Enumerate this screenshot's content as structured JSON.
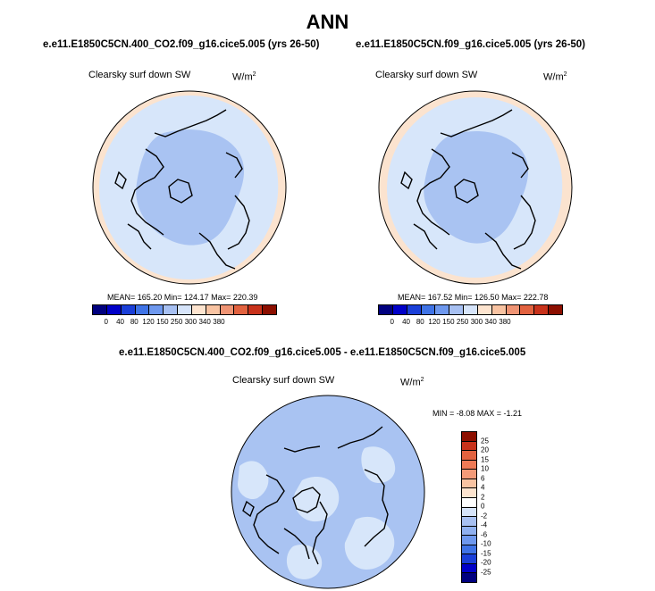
{
  "title": "ANN",
  "panels": [
    {
      "case": "e.e11.E1850C5CN.400_CO2.f09_g16.cice5.005 (yrs 26-50)",
      "variable": "Clearsky surf down SW",
      "units": "W/m",
      "units_exp": "2",
      "stats": "MEAN= 165.20  Min= 124.17  Max= 220.39"
    },
    {
      "case": "e.e11.E1850C5CN.f09_g16.cice5.005 (yrs 26-50)",
      "variable": "Clearsky surf down SW",
      "units": "W/m",
      "units_exp": "2",
      "stats": "MEAN= 167.52  Min= 126.50  Max= 222.78"
    }
  ],
  "diff": {
    "title": "e.e11.E1850C5CN.400_CO2.f09_g16.cice5.005 - e.e11.E1850C5CN.f09_g16.cice5.005",
    "variable": "Clearsky surf down SW",
    "units": "W/m",
    "units_exp": "2",
    "stats": "MIN =  -8.08 MAX =  -1.21"
  },
  "colorbar_abs": {
    "labels": [
      "0",
      "40",
      "80",
      "120",
      "150",
      "250",
      "300",
      "340",
      "380"
    ],
    "colors": [
      "#00007f",
      "#0000c8",
      "#1a3fd8",
      "#3f73e6",
      "#6e98ee",
      "#a7c0f2",
      "#d6e4fa",
      "#fde4cf",
      "#f8c3a2",
      "#ef9474",
      "#e2623f",
      "#c8321b",
      "#8c0f00"
    ]
  },
  "colorbar_diff": {
    "labels": [
      "25",
      "20",
      "15",
      "10",
      "6",
      "4",
      "2",
      "0",
      "-2",
      "-4",
      "-6",
      "-10",
      "-15",
      "-20",
      "-25"
    ],
    "colors": [
      "#8c0f00",
      "#c8321b",
      "#e2623f",
      "#ef7a56",
      "#f39a78",
      "#f8c3a2",
      "#fde4cf",
      "#ffffff",
      "#d6e4fa",
      "#a7c0f2",
      "#8fb0f0",
      "#6e98ee",
      "#3f73e6",
      "#1a3fd8",
      "#0000c8",
      "#00007f"
    ]
  },
  "map_colors": {
    "abs_outer": "#fbe3cf",
    "abs_mid": "#d7e6fa",
    "abs_inner": "#a9c3f2",
    "diff_base": "#a9c3f2",
    "diff_light": "#d7e6fa"
  }
}
